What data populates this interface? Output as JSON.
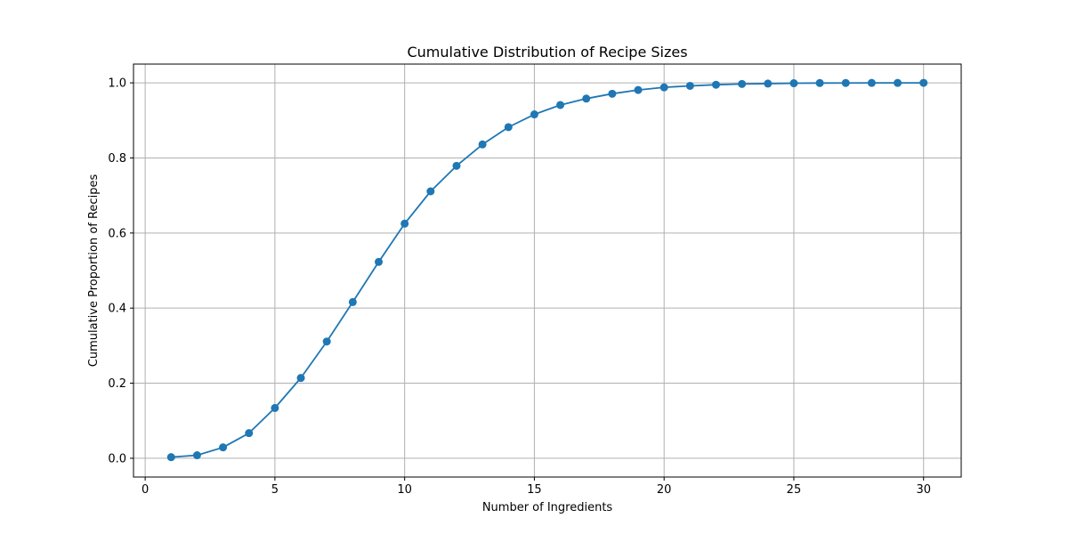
{
  "chart_data": {
    "type": "line",
    "title": "Cumulative Distribution of Recipe Sizes",
    "xlabel": "Number of Ingredients",
    "ylabel": "Cumulative Proportion of Recipes",
    "xlim": [
      -0.45,
      31.45
    ],
    "ylim": [
      -0.05,
      1.05
    ],
    "xticks": [
      0,
      5,
      10,
      15,
      20,
      25,
      30
    ],
    "xtick_labels": [
      "0",
      "5",
      "10",
      "15",
      "20",
      "25",
      "30"
    ],
    "yticks": [
      0.0,
      0.2,
      0.4,
      0.6,
      0.8,
      1.0
    ],
    "ytick_labels": [
      "0.0",
      "0.2",
      "0.4",
      "0.6",
      "0.8",
      "1.0"
    ],
    "grid": true,
    "series": [
      {
        "color": "#1f77b4",
        "marker": "circle",
        "x": [
          1,
          2,
          3,
          4,
          5,
          6,
          7,
          8,
          9,
          10,
          11,
          12,
          13,
          14,
          15,
          16,
          17,
          18,
          19,
          20,
          21,
          22,
          23,
          24,
          25,
          26,
          27,
          28,
          29,
          30
        ],
        "y": [
          0.003,
          0.008,
          0.029,
          0.067,
          0.134,
          0.214,
          0.311,
          0.416,
          0.523,
          0.625,
          0.711,
          0.779,
          0.836,
          0.882,
          0.916,
          0.941,
          0.958,
          0.971,
          0.981,
          0.988,
          0.992,
          0.995,
          0.997,
          0.998,
          0.999,
          0.9995,
          0.9997,
          0.9999,
          0.9999,
          1.0
        ]
      }
    ]
  }
}
